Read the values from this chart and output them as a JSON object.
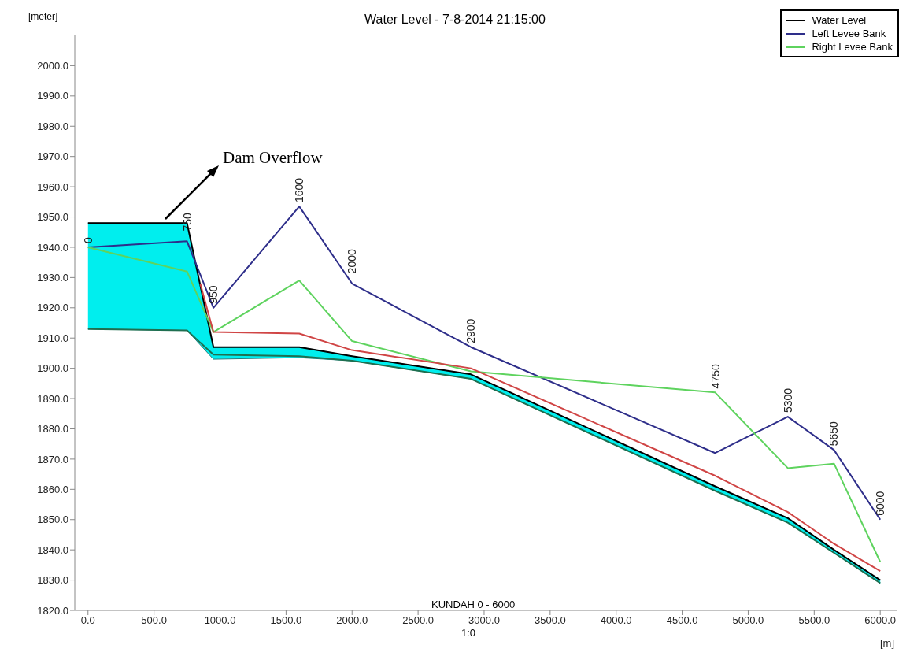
{
  "chart_data": {
    "type": "line",
    "title": "Water Level - 7-8-2014 21:15:00",
    "xlabel": "[m]",
    "ylabel": "[meter]",
    "xlim": [
      -100,
      6130
    ],
    "ylim": [
      1820,
      2010
    ],
    "xticks": [
      {
        "value": 0,
        "label": "0.0"
      },
      {
        "value": 500,
        "label": "500.0"
      },
      {
        "value": 1000,
        "label": "1000.0"
      },
      {
        "value": 1500,
        "label": "1500.0"
      },
      {
        "value": 2000,
        "label": "2000.0"
      },
      {
        "value": 2500,
        "label": "2500.0"
      },
      {
        "value": 3000,
        "label": "3000.0"
      },
      {
        "value": 3500,
        "label": "3500.0"
      },
      {
        "value": 4000,
        "label": "4000.0"
      },
      {
        "value": 4500,
        "label": "4500.0"
      },
      {
        "value": 5000,
        "label": "5000.0"
      },
      {
        "value": 5500,
        "label": "5500.0"
      },
      {
        "value": 6000,
        "label": "6000.0"
      }
    ],
    "yticks": [
      {
        "value": 1820,
        "label": "1820.0"
      },
      {
        "value": 1830,
        "label": "1830.0"
      },
      {
        "value": 1840,
        "label": "1840.0"
      },
      {
        "value": 1850,
        "label": "1850.0"
      },
      {
        "value": 1860,
        "label": "1860.0"
      },
      {
        "value": 1870,
        "label": "1870.0"
      },
      {
        "value": 1880,
        "label": "1880.0"
      },
      {
        "value": 1890,
        "label": "1890.0"
      },
      {
        "value": 1900,
        "label": "1900.0"
      },
      {
        "value": 1910,
        "label": "1910.0"
      },
      {
        "value": 1920,
        "label": "1920.0"
      },
      {
        "value": 1930,
        "label": "1930.0"
      },
      {
        "value": 1940,
        "label": "1940.0"
      },
      {
        "value": 1950,
        "label": "1950.0"
      },
      {
        "value": 1960,
        "label": "1960.0"
      },
      {
        "value": 1970,
        "label": "1970.0"
      },
      {
        "value": 1980,
        "label": "1980.0"
      },
      {
        "value": 1990,
        "label": "1990.0"
      },
      {
        "value": 2000,
        "label": "2000.0"
      }
    ],
    "grid": false,
    "legend": "top right",
    "marker": "none",
    "line_style": "solid",
    "series": [
      {
        "name": "Water Level",
        "color": "#000000",
        "x": [
          0,
          750,
          950,
          1600,
          2000,
          2900,
          4750,
          5300,
          5650,
          6000
        ],
        "values": [
          1948,
          1948,
          1907,
          1907,
          1904,
          1898,
          1861,
          1850.5,
          1840,
          1830
        ],
        "lower": [
          1913,
          1912.5,
          1903,
          1903.5,
          1902.5,
          1896.5,
          1859.5,
          1849,
          1839,
          1829
        ],
        "upper": [
          1948,
          1948,
          1907,
          1907,
          1904,
          1898,
          1861,
          1850.5,
          1840,
          1830
        ]
      },
      {
        "name": "Left Levee Bank",
        "color": "#2e2e8a",
        "x": [
          0,
          750,
          950,
          1600,
          2000,
          2900,
          4750,
          5300,
          5650,
          6000
        ],
        "values": [
          1940,
          1942,
          1920,
          1953.5,
          1928,
          1907,
          1872,
          1884,
          1873,
          1850
        ]
      },
      {
        "name": "Right Levee Bank",
        "color": "#5ed35e",
        "x": [
          0,
          750,
          950,
          1600,
          2000,
          2900,
          4750,
          5300,
          5650,
          6000
        ],
        "values": [
          1940,
          1932,
          1912,
          1929,
          1909,
          1899,
          1892,
          1867,
          1868.5,
          1836
        ]
      },
      {
        "color": "#d04545",
        "x": [
          850,
          950,
          1600,
          2000,
          2900,
          4750,
          5300,
          5650,
          6000
        ],
        "values": [
          1928,
          1912,
          1911.5,
          1906,
          1900,
          1864.5,
          1852.5,
          1842,
          1833
        ]
      },
      {
        "color": "#1f6f50",
        "x": [
          0,
          750,
          950,
          1600,
          2000,
          2900,
          4750,
          5300,
          5650,
          6000
        ],
        "values": [
          1913,
          1912.5,
          1904.5,
          1904,
          1902.5,
          1896.5,
          1859.5,
          1849,
          1839,
          1829
        ]
      }
    ],
    "annotations": [
      {
        "text": "0",
        "x": 0,
        "y": 1940
      },
      {
        "text": "750",
        "x": 750,
        "y": 1944
      },
      {
        "text": "950",
        "x": 950,
        "y": 1920
      },
      {
        "text": "1600",
        "x": 1600,
        "y": 1953.5
      },
      {
        "text": "2000",
        "x": 2000,
        "y": 1930
      },
      {
        "text": "2900",
        "x": 2900,
        "y": 1907
      },
      {
        "text": "4750",
        "x": 4750,
        "y": 1892
      },
      {
        "text": "5300",
        "x": 5300,
        "y": 1884
      },
      {
        "text": "5650",
        "x": 5650,
        "y": 1873
      },
      {
        "text": "6000",
        "x": 6000,
        "y": 1850
      },
      "Dam Overflow",
      "KUNDAH  0 - 6000",
      "1:0"
    ]
  }
}
